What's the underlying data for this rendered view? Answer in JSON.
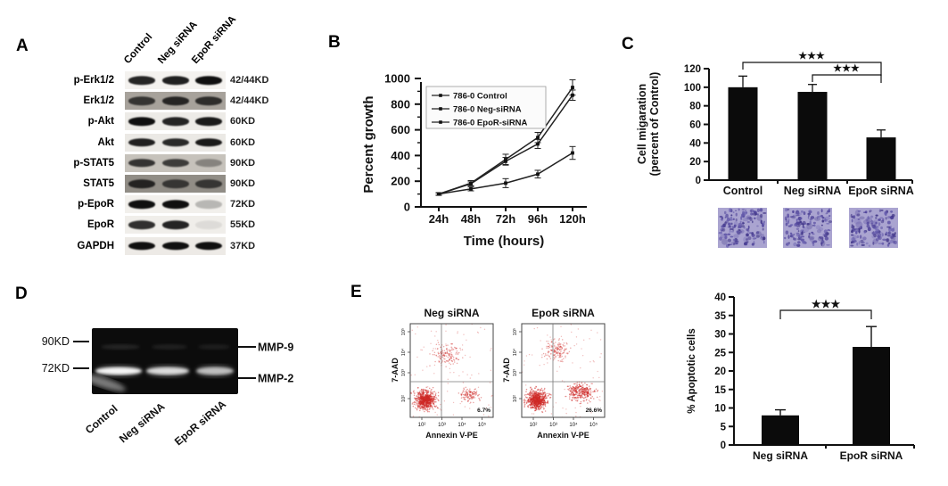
{
  "panelA": {
    "label": "A",
    "lanes": [
      "Control",
      "Neg siRNA",
      "EpoR siRNA"
    ],
    "rows": [
      {
        "protein": "p-Erk1/2",
        "kd": "42/44KD",
        "bg": "#f4f2ef",
        "noisy": false,
        "bands": [
          0.9,
          0.92,
          1.0
        ]
      },
      {
        "protein": "Erk1/2",
        "kd": "42/44KD",
        "bg": "#a7a29b",
        "noisy": true,
        "bands": [
          0.75,
          0.85,
          0.8
        ]
      },
      {
        "protein": "p-Akt",
        "kd": "60KD",
        "bg": "#edebe7",
        "noisy": false,
        "bands": [
          1.0,
          0.9,
          0.95
        ]
      },
      {
        "protein": "Akt",
        "kd": "60KD",
        "bg": "#ebe9e5",
        "noisy": false,
        "bands": [
          0.92,
          0.88,
          0.95
        ]
      },
      {
        "protein": "p-STAT5",
        "kd": "90KD",
        "bg": "#c6c2bb",
        "noisy": true,
        "bands": [
          0.8,
          0.75,
          0.35
        ]
      },
      {
        "protein": "STAT5",
        "kd": "90KD",
        "bg": "#918d86",
        "noisy": true,
        "bands": [
          0.85,
          0.7,
          0.7
        ]
      },
      {
        "protein": "p-EpoR",
        "kd": "72KD",
        "bg": "#f2f0ec",
        "noisy": false,
        "bands": [
          1.0,
          1.0,
          0.25
        ]
      },
      {
        "protein": "EpoR",
        "kd": "55KD",
        "bg": "#f0eeea",
        "noisy": false,
        "bands": [
          0.85,
          0.9,
          0.08
        ]
      },
      {
        "protein": "GAPDH",
        "kd": "37KD",
        "bg": "#edeae6",
        "noisy": false,
        "bands": [
          1.0,
          1.0,
          1.0
        ]
      }
    ]
  },
  "panelB": {
    "label": "B",
    "chart_data": {
      "type": "line",
      "x": [
        "24h",
        "48h",
        "72h",
        "96h",
        "120h"
      ],
      "series": [
        {
          "name": "786-0 Control",
          "values": [
            100,
            185,
            370,
            540,
            930
          ],
          "errors": [
            10,
            20,
            40,
            40,
            60
          ]
        },
        {
          "name": "786-0 Neg-siRNA",
          "values": [
            100,
            180,
            355,
            490,
            870
          ],
          "errors": [
            10,
            15,
            30,
            35,
            40
          ]
        },
        {
          "name": "786-0 EpoR-siRNA",
          "values": [
            100,
            140,
            185,
            255,
            420
          ],
          "errors": [
            8,
            15,
            35,
            30,
            50
          ]
        }
      ],
      "ylabel": "Percent growth",
      "xlabel": "Time (hours)",
      "ylim": [
        0,
        1000
      ],
      "ytick_step": 200,
      "legend_position": "upper-left",
      "line_color": "#222222"
    }
  },
  "panelC": {
    "label": "C",
    "chart_data": {
      "type": "bar",
      "categories": [
        "Control",
        "Neg siRNA",
        "EpoR siRNA"
      ],
      "values": [
        100,
        95,
        46
      ],
      "errors": [
        12,
        8,
        8
      ],
      "ylabel_line1": "Cell migaration",
      "ylabel_line2": "(percent of Control)",
      "ylim": [
        0,
        120
      ],
      "ytick_step": 20,
      "bar_color": "#0b0b0b",
      "significance": [
        {
          "from": 0,
          "to": 2,
          "label": "★★★"
        },
        {
          "from": 1,
          "to": 2,
          "label": "★★★"
        }
      ]
    },
    "micrographs": {
      "count": 3,
      "base_color": "#aaa4d0",
      "dot_colors": [
        "#4a3e96",
        "#5d52a5",
        "#3c3184",
        "#6a61b0"
      ]
    }
  },
  "panelD": {
    "label": "D",
    "markers": [
      "90KD",
      "72KD"
    ],
    "band_labels": [
      "MMP-9",
      "MMP-2"
    ],
    "lanes": [
      "Control",
      "Neg siRNA",
      "EpoR siRNA"
    ]
  },
  "panelE": {
    "label": "E",
    "flow_plots": [
      {
        "title": "Neg siRNA",
        "quadrant_percent": "6.7%"
      },
      {
        "title": "EpoR siRNA",
        "quadrant_percent": "26.6%"
      }
    ],
    "flow_xlabel": "Annexin V-PE",
    "flow_ylabel": "7-AAD",
    "flow_ticks": [
      "10²",
      "10³",
      "10⁴",
      "10⁵"
    ],
    "dot_color": "#cf2a27",
    "chart_data": {
      "type": "bar",
      "categories": [
        "Neg siRNA",
        "EpoR siRNA"
      ],
      "values": [
        8,
        26.5
      ],
      "errors": [
        1.5,
        5.5
      ],
      "ylabel": "% Apoptotic cells",
      "ylim": [
        0,
        40
      ],
      "ytick_step": 5,
      "bar_color": "#0b0b0b",
      "significance": [
        {
          "from": 0,
          "to": 1,
          "label": "★★★"
        }
      ]
    }
  }
}
